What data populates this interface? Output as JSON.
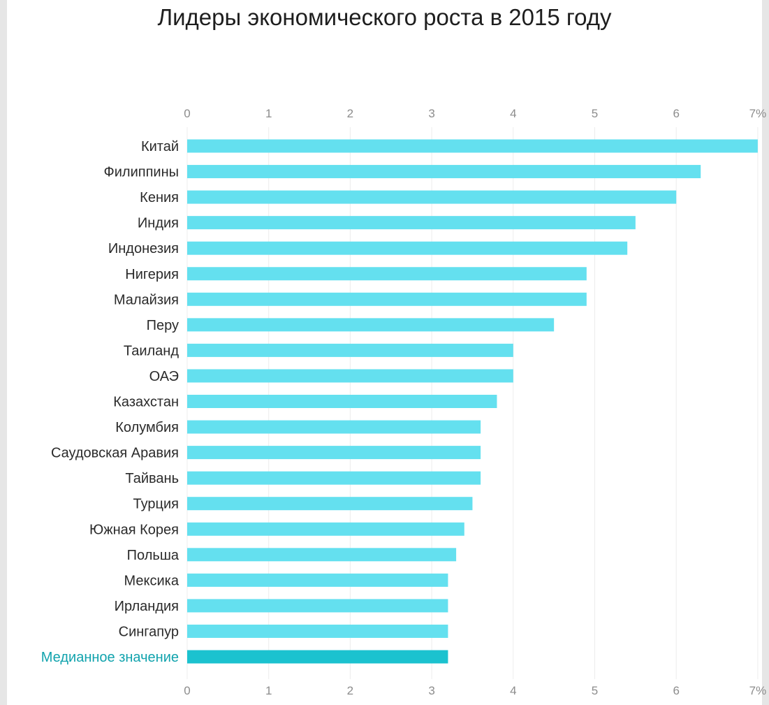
{
  "chart_data": {
    "type": "bar",
    "orientation": "horizontal",
    "title": "Лидеры экономического роста в 2015 году",
    "xlabel": "",
    "ylabel": "",
    "xlim": [
      0,
      7
    ],
    "ticks": [
      "0",
      "1",
      "2",
      "3",
      "4",
      "5",
      "6",
      "7%"
    ],
    "categories": [
      "Китай",
      "Филиппины",
      "Кения",
      "Индия",
      "Индонезия",
      "Нигерия",
      "Малайзия",
      "Перу",
      "Таиланд",
      "ОАЭ",
      "Казахстан",
      "Колумбия",
      "Саудовская Аравия",
      "Тайвань",
      "Турция",
      "Южная Корея",
      "Польша",
      "Мексика",
      "Ирландия",
      "Сингапур",
      "Медианное значение"
    ],
    "values": [
      7.0,
      6.3,
      6.0,
      5.5,
      5.4,
      4.9,
      4.9,
      4.5,
      4.0,
      4.0,
      3.8,
      3.6,
      3.6,
      3.6,
      3.5,
      3.4,
      3.3,
      3.2,
      3.2,
      3.2,
      3.2
    ],
    "highlight": "Медианное значение",
    "grid": true,
    "colors": {
      "bar": "#64e0ef",
      "highlight_bar": "#1bc2cf",
      "highlight_label": "#11a3ad",
      "grid": "#ececec"
    }
  }
}
